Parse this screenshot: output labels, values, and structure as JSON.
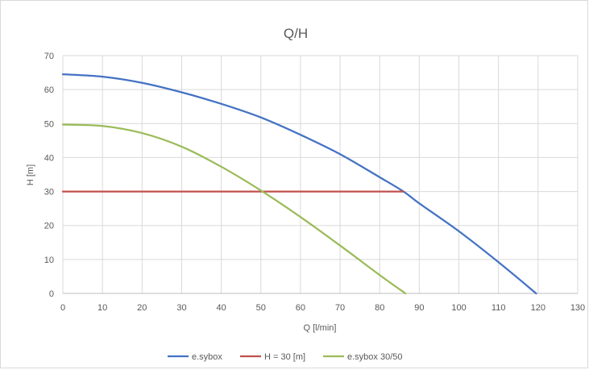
{
  "chart_data": {
    "type": "line",
    "title": "Q/H",
    "xlabel": "Q [l/min]",
    "ylabel": "H [m]",
    "xlim": [
      0,
      130
    ],
    "ylim": [
      0,
      70
    ],
    "x_ticks": [
      0,
      10,
      20,
      30,
      40,
      50,
      60,
      70,
      80,
      90,
      100,
      110,
      120,
      130
    ],
    "y_ticks": [
      0,
      10,
      20,
      30,
      40,
      50,
      60,
      70
    ],
    "grid": true,
    "legend_position": "bottom",
    "series": [
      {
        "name": "e.sybox",
        "color": "#4472c4",
        "x": [
          0,
          10,
          20,
          30,
          40,
          50,
          60,
          70,
          80,
          86,
          90,
          100,
          110,
          119.5
        ],
        "y": [
          64.5,
          63.8,
          62,
          59.2,
          55.8,
          51.8,
          46.7,
          41,
          34.2,
          30,
          26.5,
          18.3,
          9.2,
          0
        ]
      },
      {
        "name": "H = 30 [m]",
        "color": "#c0504d",
        "x": [
          0,
          86
        ],
        "y": [
          30,
          30
        ]
      },
      {
        "name": "e.sybox 30/50",
        "color": "#9bbb59",
        "x": [
          0,
          10,
          20,
          30,
          40,
          50,
          60,
          70,
          80,
          86.5
        ],
        "y": [
          49.7,
          49.3,
          47.2,
          43.2,
          37.3,
          30.3,
          22.5,
          14.1,
          5.4,
          0
        ]
      }
    ]
  }
}
